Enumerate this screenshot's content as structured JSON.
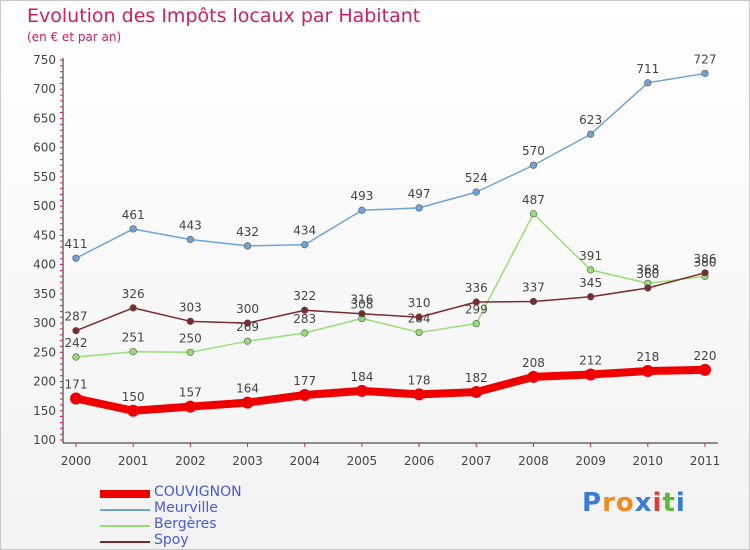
{
  "logo": {
    "letters": [
      "P",
      "r",
      "o",
      "x",
      "i",
      "t",
      "i"
    ],
    "colors": [
      "#3a7bd5",
      "#f08a24",
      "#f08a24",
      "#3a7bd5",
      "#e23a3a",
      "#5bb83a",
      "#3a7bd5"
    ]
  },
  "chart_data": {
    "type": "line",
    "title": "Evolution des Impôts locaux par Habitant",
    "subtitle": "(en € et par an)",
    "x": [
      "2000",
      "2001",
      "2002",
      "2003",
      "2004",
      "2005",
      "2006",
      "2007",
      "2008",
      "2009",
      "2010",
      "2011"
    ],
    "ylim": [
      100,
      750
    ],
    "yticks": [
      100,
      150,
      200,
      250,
      300,
      350,
      400,
      450,
      500,
      550,
      600,
      650,
      700,
      750
    ],
    "grid": false,
    "legend": "bottom-left",
    "series": [
      {
        "name": "COUVIGNON",
        "values": [
          171,
          150,
          157,
          164,
          177,
          184,
          178,
          182,
          208,
          212,
          218,
          220
        ],
        "color": "#ee0000",
        "emphasis": true
      },
      {
        "name": "Meurville",
        "values": [
          411,
          461,
          443,
          432,
          434,
          493,
          497,
          524,
          570,
          623,
          711,
          727
        ],
        "color": "#6fa3d8"
      },
      {
        "name": "Bergères",
        "values": [
          242,
          251,
          250,
          269,
          283,
          308,
          284,
          299,
          487,
          391,
          368,
          380
        ],
        "color": "#99dd77"
      },
      {
        "name": "Spoy",
        "values": [
          287,
          326,
          303,
          300,
          322,
          316,
          310,
          336,
          337,
          345,
          360,
          386
        ],
        "color": "#7b2b2b"
      }
    ]
  }
}
